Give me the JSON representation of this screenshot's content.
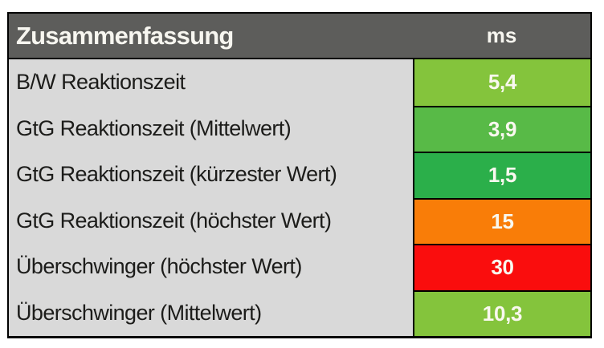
{
  "table": {
    "header": {
      "title": "Zusammenfassung",
      "unit_label": "ms",
      "bg": "#5d5d5b",
      "text_color": "#f7f6f0"
    },
    "row_bg": "#d9d9d9",
    "label_text_color": "#1c1c1a",
    "value_text_color": "#f9f8ef",
    "border_color": "#000000",
    "rows": [
      {
        "label": "B/W Reaktionszeit",
        "value": "5,4",
        "color": "#84c43c"
      },
      {
        "label": "GtG Reaktionszeit (Mittelwert)",
        "value": "3,9",
        "color": "#58ba47"
      },
      {
        "label": "GtG Reaktionszeit (kürzester Wert)",
        "value": "1,5",
        "color": "#2baf4a"
      },
      {
        "label": "GtG Reaktionszeit (höchster Wert)",
        "value": "15",
        "color": "#f97d08"
      },
      {
        "label": "Überschwinger (höchster Wert)",
        "value": "30",
        "color": "#fa0d0d"
      },
      {
        "label": "Überschwinger (Mittelwert)",
        "value": "10,3",
        "color": "#84c43c"
      }
    ]
  },
  "chart_data": {
    "type": "table",
    "title": "Zusammenfassung",
    "columns": [
      "Zusammenfassung",
      "ms"
    ],
    "rows": [
      [
        "B/W Reaktionszeit",
        5.4
      ],
      [
        "GtG Reaktionszeit (Mittelwert)",
        3.9
      ],
      [
        "GtG Reaktionszeit (kürzester Wert)",
        1.5
      ],
      [
        "GtG Reaktionszeit (höchster Wert)",
        15
      ],
      [
        "Überschwinger (höchster Wert)",
        30
      ],
      [
        "Überschwinger (Mittelwert)",
        10.3
      ]
    ],
    "value_color_coding": {
      "5.4": "#84c43c",
      "3.9": "#58ba47",
      "1.5": "#2baf4a",
      "15": "#f97d08",
      "30": "#fa0d0d",
      "10.3": "#84c43c"
    }
  }
}
